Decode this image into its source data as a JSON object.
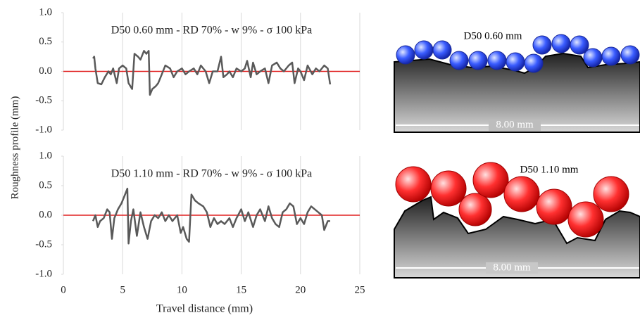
{
  "chart_data": [
    {
      "type": "line",
      "title": "D50 0.60 mm - RD 70% - w 9% - σ 100 kPa",
      "x": [
        2.5,
        2.6,
        2.7,
        2.9,
        3.2,
        3.5,
        3.8,
        4.0,
        4.2,
        4.5,
        4.7,
        5.0,
        5.3,
        5.5,
        5.8,
        6.0,
        6.3,
        6.5,
        6.8,
        7.0,
        7.2,
        7.3,
        7.5,
        7.8,
        8.0,
        8.3,
        8.6,
        9.0,
        9.3,
        9.6,
        10.0,
        10.3,
        10.6,
        11.0,
        11.3,
        11.6,
        12.0,
        12.3,
        12.6,
        13.0,
        13.3,
        13.5,
        13.8,
        14.0,
        14.3,
        14.6,
        15.0,
        15.3,
        15.5,
        15.8,
        16.0,
        16.3,
        16.6,
        17.0,
        17.3,
        17.6,
        18.0,
        18.3,
        18.6,
        19.0,
        19.3,
        19.5,
        19.8,
        20.0,
        20.3,
        20.6,
        21.0,
        21.3,
        21.6,
        22.0,
        22.3,
        22.5
      ],
      "series": [
        {
          "color": "#595959",
          "values": [
            0.22,
            0.25,
            0.05,
            -0.2,
            -0.22,
            -0.1,
            0.0,
            -0.05,
            0.05,
            -0.2,
            0.05,
            0.1,
            0.05,
            -0.2,
            -0.3,
            0.3,
            0.25,
            0.2,
            0.35,
            0.3,
            0.35,
            -0.4,
            -0.3,
            -0.25,
            -0.2,
            -0.05,
            0.1,
            0.05,
            -0.1,
            0.0,
            0.05,
            -0.05,
            0.0,
            0.05,
            -0.05,
            0.1,
            0.0,
            -0.2,
            0.0,
            0.0,
            0.25,
            -0.1,
            -0.05,
            0.0,
            -0.1,
            0.05,
            0.0,
            0.05,
            0.18,
            -0.1,
            0.15,
            -0.05,
            0.0,
            0.05,
            -0.2,
            0.1,
            0.15,
            0.05,
            0.0,
            0.1,
            0.15,
            -0.2,
            0.05,
            0.0,
            -0.15,
            0.1,
            -0.05,
            0.05,
            0.0,
            0.1,
            0.05,
            -0.22
          ]
        }
      ],
      "zero_line_color": "#e02020",
      "xlim": [
        0,
        25
      ],
      "xticks": [
        0,
        5,
        10,
        15,
        20,
        25
      ],
      "show_xtick_labels": false,
      "ylim": [
        -1,
        1
      ],
      "yticks": [
        {
          "value": -1,
          "label": "-1.0"
        },
        {
          "value": -0.5,
          "label": "-0.5"
        },
        {
          "value": 0,
          "label": "0.0"
        },
        {
          "value": 0.5,
          "label": "0.5"
        },
        {
          "value": 1,
          "label": "1.0"
        }
      ],
      "grid": true
    },
    {
      "type": "line",
      "title": "D50 1.10 mm - RD 70% - w 9% - σ 100 kPa",
      "x": [
        2.5,
        2.7,
        2.9,
        3.1,
        3.4,
        3.7,
        3.9,
        4.1,
        4.3,
        4.6,
        4.9,
        5.2,
        5.4,
        5.5,
        5.7,
        5.9,
        6.2,
        6.5,
        6.8,
        7.1,
        7.4,
        7.7,
        8.0,
        8.3,
        8.6,
        8.9,
        9.2,
        9.6,
        9.9,
        10.1,
        10.4,
        10.6,
        10.8,
        11.1,
        11.4,
        11.8,
        12.1,
        12.4,
        12.7,
        13.0,
        13.3,
        13.6,
        14.0,
        14.3,
        14.6,
        15.0,
        15.3,
        15.6,
        16.0,
        16.3,
        16.6,
        17.0,
        17.3,
        17.6,
        17.9,
        18.2,
        18.5,
        18.8,
        19.1,
        19.4,
        19.7,
        20.0,
        20.3,
        20.6,
        20.9,
        21.2,
        21.5,
        21.8,
        22.0,
        22.3,
        22.5
      ],
      "series": [
        {
          "color": "#595959",
          "values": [
            -0.1,
            0.0,
            -0.2,
            -0.1,
            -0.05,
            0.1,
            0.05,
            -0.4,
            -0.05,
            0.1,
            0.2,
            0.35,
            0.45,
            -0.48,
            -0.1,
            0.1,
            -0.35,
            0.05,
            -0.2,
            -0.4,
            -0.1,
            0.0,
            -0.05,
            0.05,
            -0.1,
            0.0,
            -0.1,
            0.0,
            -0.3,
            -0.2,
            -0.4,
            -0.45,
            0.35,
            0.25,
            0.2,
            0.15,
            0.05,
            -0.2,
            -0.05,
            -0.15,
            -0.1,
            -0.15,
            -0.05,
            -0.2,
            -0.05,
            0.1,
            -0.1,
            0.05,
            -0.2,
            0.0,
            0.1,
            -0.1,
            0.15,
            -0.05,
            -0.15,
            -0.2,
            0.05,
            0.1,
            0.2,
            0.15,
            -0.15,
            -0.05,
            -0.15,
            0.05,
            0.15,
            0.1,
            0.05,
            0.0,
            -0.25,
            -0.1,
            -0.1
          ]
        }
      ],
      "zero_line_color": "#e02020",
      "xlim": [
        0,
        25
      ],
      "xticks": [
        0,
        5,
        10,
        15,
        20,
        25
      ],
      "show_xtick_labels": true,
      "ylim": [
        -1,
        1
      ],
      "yticks": [
        {
          "value": -1,
          "label": "-1.0"
        },
        {
          "value": -0.5,
          "label": "-0.5"
        },
        {
          "value": 0,
          "label": "0.0"
        },
        {
          "value": 0.5,
          "label": "0.5"
        },
        {
          "value": 1,
          "label": "1.0"
        }
      ],
      "grid": true,
      "x_label": "Travel distance (mm)"
    }
  ],
  "y_label": "Roughness profile (mm)",
  "illustrations": [
    {
      "label": "D50 0.60 mm",
      "scale_label": "8.00 mm"
    },
    {
      "label": "D50 1.10 mm",
      "scale_label": "8.00 mm"
    }
  ]
}
